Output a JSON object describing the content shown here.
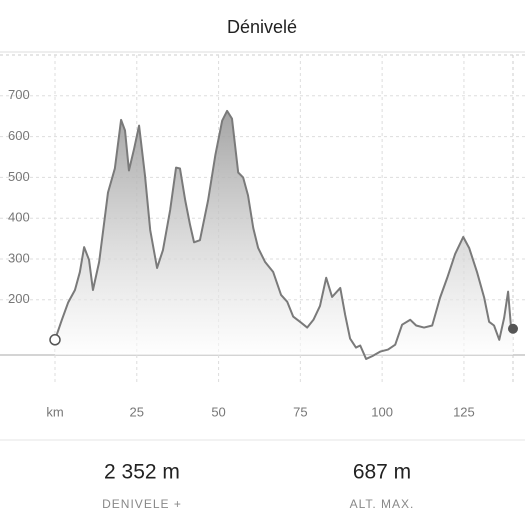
{
  "header": {
    "title": "Dénivelé"
  },
  "chart_data": {
    "type": "line",
    "x": [
      0,
      2.1,
      4,
      6.1,
      7.6,
      8.9,
      10.4,
      11.6,
      13.5,
      16.2,
      18.3,
      20.2,
      21.4,
      22.6,
      24.2,
      25.7,
      27.5,
      29.1,
      31.2,
      33,
      35.2,
      37,
      38.2,
      39.8,
      41.3,
      42.5,
      44.3,
      46.8,
      49,
      51.1,
      52.6,
      54.1,
      56,
      57.5,
      59,
      60.6,
      62.1,
      64.2,
      66.7,
      69.1,
      71,
      72.8,
      74.9,
      77.1,
      79,
      81,
      82.9,
      84.7,
      87.2,
      88.7,
      90.2,
      92,
      93.3,
      95.1,
      97,
      99.4,
      101.8,
      104,
      106.1,
      108.6,
      110.4,
      112.8,
      115.3,
      117.7,
      119.9,
      122.3,
      124.8,
      126.6,
      129,
      131.2,
      132.7,
      134.2,
      135.8,
      137.3,
      138.5,
      139.4,
      140
    ],
    "values": [
      102,
      151,
      193,
      224,
      268,
      329,
      298,
      224,
      293,
      463,
      522,
      641,
      615,
      517,
      571,
      627,
      505,
      371,
      278,
      322,
      420,
      524,
      522,
      444,
      383,
      341,
      346,
      444,
      554,
      639,
      663,
      644,
      512,
      500,
      456,
      376,
      327,
      293,
      268,
      212,
      195,
      159,
      146,
      132,
      151,
      185,
      254,
      207,
      229,
      163,
      105,
      83,
      88,
      55,
      62,
      73,
      78,
      90,
      139,
      151,
      137,
      132,
      137,
      205,
      254,
      312,
      354,
      327,
      268,
      205,
      146,
      137,
      102,
      156,
      220,
      132,
      129
    ],
    "color": "#7a7a7a",
    "xlim": [
      0,
      140
    ],
    "xticks": [
      {
        "value": 0,
        "label": "km"
      },
      25,
      50,
      75,
      100,
      125
    ],
    "ylim": [
      50,
      800
    ],
    "yticks": [
      200,
      300,
      400,
      500,
      600,
      700
    ],
    "grid": true
  },
  "stats": [
    {
      "value": "2 352 m",
      "label": "DENIVELE +"
    },
    {
      "value": "687 m",
      "label": "ALT. MAX."
    }
  ]
}
